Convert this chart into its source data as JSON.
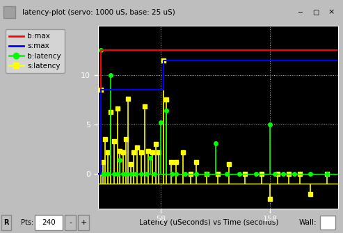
{
  "title": "latency-plot (servo: 1000 uS, base: 25 uS)",
  "xlabel": "Latency (uSeconds) vs Time (seconds)",
  "plot_bg": "#000000",
  "fig_bg": "#bebebe",
  "legend_bg": "#d4d4d4",
  "xmin": 0,
  "xmax": 220,
  "ymin": -3.5,
  "ymax": 15.0,
  "yticks": [
    0,
    5,
    10
  ],
  "xticks": [
    58,
    158
  ],
  "b_max_color": "#ff0000",
  "s_max_color": "#0000ff",
  "b_lat_color": "#00ff00",
  "s_lat_color": "#ffff00",
  "b_lat_x": [
    3,
    5,
    7,
    9,
    12,
    15,
    18,
    20,
    23,
    26,
    30,
    35,
    40,
    45,
    48,
    52,
    58,
    63,
    68,
    72,
    80,
    90,
    100,
    108,
    118,
    130,
    145,
    158,
    162,
    170,
    180,
    195,
    210
  ],
  "b_lat_y": [
    12.5,
    0.0,
    0.0,
    0.0,
    10.0,
    0.0,
    0.0,
    1.4,
    0.0,
    0.0,
    0.0,
    0.0,
    0.0,
    0.0,
    1.6,
    0.0,
    5.2,
    6.4,
    0.0,
    0.0,
    0.0,
    0.0,
    0.0,
    3.1,
    0.0,
    0.0,
    0.0,
    5.0,
    0.0,
    0.0,
    0.0,
    0.0,
    0.0
  ],
  "s_lat_x": [
    3,
    5,
    7,
    9,
    12,
    15,
    18,
    20,
    23,
    26,
    28,
    30,
    33,
    36,
    40,
    43,
    46,
    50,
    53,
    56,
    60,
    63,
    67,
    72,
    78,
    85,
    90,
    100,
    110,
    120,
    135,
    150,
    158,
    165,
    175,
    185,
    195,
    210
  ],
  "s_lat_y": [
    8.5,
    1.2,
    3.5,
    2.2,
    6.3,
    3.3,
    6.6,
    2.3,
    2.2,
    3.5,
    7.6,
    1.0,
    2.2,
    2.7,
    2.2,
    6.8,
    2.3,
    2.2,
    3.0,
    2.2,
    11.5,
    7.5,
    1.2,
    1.2,
    2.2,
    0.0,
    1.2,
    0.0,
    0.0,
    1.0,
    0.0,
    0.0,
    -2.5,
    0.0,
    0.0,
    0.0,
    -2.0,
    0.0
  ],
  "b_baseline": 0.0,
  "s_baseline": -1.0,
  "b_max_init": 12.5,
  "b_max_step1_x": 12,
  "b_max_val1": 13.5,
  "b_max_step2_x": 58,
  "b_max_val2": 14.0,
  "s_max_val": 12.5,
  "pts_value": "240",
  "r_label": "R",
  "pts_label": "Pts:",
  "wall_label": "Wall:"
}
